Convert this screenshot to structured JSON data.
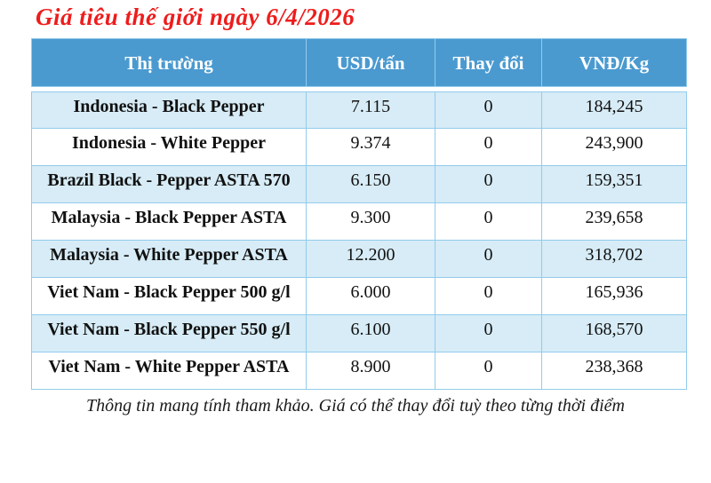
{
  "title": "Giá tiêu thế giới ngày 6/4/2026",
  "colors": {
    "title_red": "#ee1c1c",
    "header_bg": "#4a9ad0",
    "header_text": "#ffffff",
    "row_alt_bg": "#d7ecf6",
    "border": "#92cbec",
    "change_value_blue": "#4e7ec8"
  },
  "table": {
    "headers": {
      "market": "Thị trường",
      "usd": "USD/tấn",
      "change": "Thay đổi",
      "vnd": "VNĐ/Kg"
    },
    "rows": [
      {
        "market": "Indonesia - Black Pepper",
        "usd": "7.115",
        "change": "0",
        "vnd": "184,245"
      },
      {
        "market": "Indonesia - White Pepper",
        "usd": "9.374",
        "change": "0",
        "vnd": "243,900"
      },
      {
        "market": "Brazil Black - Pepper ASTA 570",
        "usd": "6.150",
        "change": "0",
        "vnd": "159,351"
      },
      {
        "market": "Malaysia - Black Pepper ASTA",
        "usd": "9.300",
        "change": "0",
        "vnd": "239,658"
      },
      {
        "market": "Malaysia - White Pepper ASTA",
        "usd": "12.200",
        "change": "0",
        "vnd": "318,702"
      },
      {
        "market": "Viet Nam - Black Pepper 500 g/l",
        "usd": "6.000",
        "change": "0",
        "vnd": "165,936"
      },
      {
        "market": "Viet Nam - Black Pepper 550 g/l",
        "usd": "6.100",
        "change": "0",
        "vnd": "168,570"
      },
      {
        "market": "Viet Nam - White Pepper ASTA",
        "usd": "8.900",
        "change": "0",
        "vnd": "238,368"
      }
    ]
  },
  "footnote": "Thông tin mang tính tham khảo. Giá có thể thay đổi tuỳ theo từng thời điểm"
}
